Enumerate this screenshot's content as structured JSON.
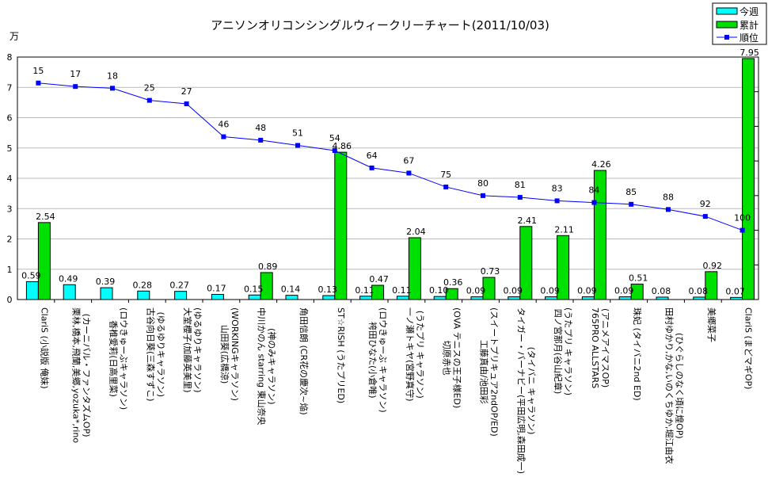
{
  "chart_data": {
    "type": "bar",
    "title": "アニソンオリコンシングルウィークリーチャート(2011/10/03)",
    "ylabel": "万",
    "ylim": [
      0,
      8
    ],
    "yticks": [
      "0",
      "1",
      "2",
      "3",
      "4",
      "5",
      "6",
      "7",
      "8"
    ],
    "y2lim": [
      0,
      140
    ],
    "y2_inverted": true,
    "grid": true,
    "legend_position": "top-right",
    "colors": {
      "weekly": "#00ffff",
      "total": "#00e000",
      "rank": "#0000ff"
    },
    "categories": [
      [
        "ClariS (小説版 俺妹)"
      ],
      [
        "栗林,橋本,飛蘭,美郷,yozuka*,rino",
        "(カーニバル・ファンタズムOP)"
      ],
      [
        "香椎愛莉(日高里菜)",
        "(ロウきゅーぶキャラソン)"
      ],
      [
        "古谷向日葵(三森すずこ)",
        "(ゆるゆりキャラソン)"
      ],
      [
        "大室櫻子(加藤英美里)",
        "(ゆるゆりキャラソン)"
      ],
      [
        "山田葵(広橋涼)",
        "(WORKINGキャラソン)"
      ],
      [
        "中川かのん starring 東山奈央",
        "(神のみキャラソン)"
      ],
      [
        "角田信朗 (CR花の慶次~焔)"
      ],
      [
        "ST☆RISH (うたプリED)"
      ],
      [
        "袴田ひなた(小倉唯)",
        "(ロウきゅーぶ キャラソン)"
      ],
      [
        "一ノ瀬トキヤ(宮野真守)",
        "(うたプリ キャラソン)"
      ],
      [
        "切原赤也",
        "(OVA テニスの王子様ED)"
      ],
      [
        "工藤真由/池田彩",
        "(スイートプリキュア2ndOP/ED)"
      ],
      [
        "タイガー・バーナビー(平田広明,森田成一)",
        "(タイバニ キャラソン)"
      ],
      [
        "四ノ宮那月(谷山紀章)",
        "(うたプリ キャラソン)"
      ],
      [
        "765PRO ALLSTARS",
        "(アニメアイマスOP)"
      ],
      [
        "珠妃 (タイバニ2nd ED)"
      ],
      [
        "田村ゆかり,かな,いのくちゆか,堀江由衣",
        "(ひぐらしのなく頃に煌OP)"
      ],
      [
        "美郷菜子"
      ],
      [
        "ClariS (まどマギOP)"
      ]
    ],
    "series": [
      {
        "name": "今週",
        "type": "bar",
        "axis": "left",
        "values": [
          0.59,
          0.49,
          0.39,
          0.28,
          0.27,
          0.17,
          0.15,
          0.14,
          0.13,
          0.11,
          0.11,
          0.1,
          0.09,
          0.09,
          0.09,
          0.09,
          0.09,
          0.08,
          0.08,
          0.07
        ],
        "labels": [
          "0.59",
          "0.49",
          "0.39",
          "0.28",
          "0.27",
          "0.17",
          "0.15",
          "0.14",
          "0.13",
          "0.11",
          "0.11",
          "0.10",
          "0.09",
          "0.09",
          "0.09",
          "0.09",
          "0.09",
          "0.08",
          "0.08",
          "0.07"
        ]
      },
      {
        "name": "累計",
        "type": "bar",
        "axis": "left",
        "values": [
          2.54,
          null,
          null,
          null,
          null,
          null,
          0.89,
          null,
          4.86,
          0.47,
          2.04,
          0.36,
          0.73,
          2.41,
          2.11,
          4.26,
          0.51,
          null,
          0.92,
          7.95
        ],
        "labels": [
          "2.54",
          "",
          "",
          "",
          "",
          "",
          "0.89",
          "",
          "4.86",
          "0.47",
          "2.04",
          "0.36",
          "0.73",
          "2.41",
          "2.11",
          "4.26",
          "0.51",
          "",
          "0.92",
          "7.95"
        ]
      },
      {
        "name": "順位",
        "type": "line",
        "axis": "right",
        "values": [
          15,
          17,
          18,
          25,
          27,
          46,
          48,
          51,
          54,
          64,
          67,
          75,
          80,
          81,
          83,
          84,
          85,
          88,
          92,
          100
        ],
        "labels": [
          "15",
          "17",
          "18",
          "25",
          "27",
          "46",
          "48",
          "51",
          "54",
          "64",
          "67",
          "75",
          "80",
          "81",
          "83",
          "84",
          "85",
          "88",
          "92",
          "100"
        ]
      }
    ]
  }
}
